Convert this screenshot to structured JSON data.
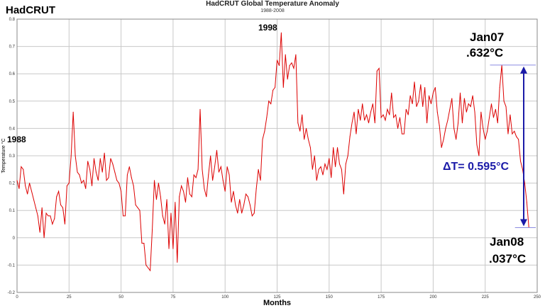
{
  "chart_data": {
    "type": "line",
    "title": "HadCRUT Global Temperature Anomaly",
    "subtitle": "1988-2008",
    "brand": "HadCRUT",
    "xlabel": "Months",
    "ylabel": "Temperature °C",
    "xlim": [
      0,
      250
    ],
    "ylim": [
      -0.2,
      0.8
    ],
    "x_ticks": [
      0,
      25,
      50,
      75,
      100,
      125,
      150,
      175,
      200,
      225,
      250
    ],
    "y_ticks": [
      -0.2,
      -0.1,
      0,
      0.1,
      0.2,
      0.3,
      0.4,
      0.5,
      0.6,
      0.7,
      0.8
    ],
    "grid": true,
    "series": [
      {
        "color": "#dd0000",
        "values": [
          0.21,
          0.18,
          0.26,
          0.25,
          0.19,
          0.16,
          0.2,
          0.17,
          0.14,
          0.11,
          0.08,
          0.02,
          0.11,
          0.0,
          0.09,
          0.08,
          0.08,
          0.05,
          0.07,
          0.15,
          0.17,
          0.12,
          0.11,
          0.05,
          0.19,
          0.2,
          0.3,
          0.46,
          0.3,
          0.24,
          0.23,
          0.2,
          0.21,
          0.18,
          0.28,
          0.25,
          0.19,
          0.29,
          0.24,
          0.21,
          0.29,
          0.24,
          0.31,
          0.21,
          0.22,
          0.29,
          0.27,
          0.24,
          0.21,
          0.2,
          0.17,
          0.08,
          0.08,
          0.23,
          0.26,
          0.22,
          0.19,
          0.12,
          0.11,
          0.1,
          -0.02,
          -0.02,
          -0.1,
          -0.11,
          -0.12,
          0.03,
          0.21,
          0.14,
          0.2,
          0.15,
          0.08,
          0.05,
          0.14,
          -0.04,
          0.09,
          -0.04,
          0.13,
          -0.09,
          0.15,
          0.19,
          0.17,
          0.13,
          0.22,
          0.16,
          0.15,
          0.23,
          0.22,
          0.25,
          0.47,
          0.25,
          0.18,
          0.15,
          0.23,
          0.3,
          0.21,
          0.26,
          0.32,
          0.24,
          0.26,
          0.21,
          0.17,
          0.26,
          0.23,
          0.13,
          0.17,
          0.12,
          0.09,
          0.14,
          0.09,
          0.12,
          0.16,
          0.15,
          0.12,
          0.08,
          0.09,
          0.18,
          0.25,
          0.21,
          0.36,
          0.39,
          0.44,
          0.5,
          0.49,
          0.54,
          0.55,
          0.65,
          0.63,
          0.75,
          0.55,
          0.67,
          0.58,
          0.63,
          0.64,
          0.62,
          0.67,
          0.42,
          0.39,
          0.45,
          0.36,
          0.4,
          0.36,
          0.33,
          0.25,
          0.3,
          0.21,
          0.25,
          0.26,
          0.23,
          0.27,
          0.25,
          0.29,
          0.22,
          0.33,
          0.26,
          0.33,
          0.27,
          0.25,
          0.16,
          0.27,
          0.3,
          0.37,
          0.42,
          0.46,
          0.38,
          0.47,
          0.43,
          0.49,
          0.43,
          0.45,
          0.42,
          0.46,
          0.49,
          0.42,
          0.61,
          0.62,
          0.44,
          0.45,
          0.43,
          0.47,
          0.45,
          0.53,
          0.44,
          0.45,
          0.4,
          0.44,
          0.38,
          0.38,
          0.47,
          0.45,
          0.52,
          0.49,
          0.57,
          0.48,
          0.5,
          0.56,
          0.48,
          0.55,
          0.42,
          0.52,
          0.49,
          0.53,
          0.55,
          0.46,
          0.41,
          0.33,
          0.36,
          0.4,
          0.43,
          0.47,
          0.51,
          0.4,
          0.36,
          0.42,
          0.53,
          0.42,
          0.51,
          0.46,
          0.49,
          0.48,
          0.52,
          0.46,
          0.34,
          0.3,
          0.46,
          0.4,
          0.36,
          0.39,
          0.44,
          0.49,
          0.44,
          0.47,
          0.42,
          0.55,
          0.632,
          0.5,
          0.48,
          0.38,
          0.45,
          0.38,
          0.39,
          0.37,
          0.36,
          0.28,
          0.25,
          0.2,
          0.13,
          0.037
        ]
      }
    ],
    "annotations": {
      "year_1988": "1988",
      "year_1998": "1998",
      "jan07_label": "Jan07",
      "jan07_value": ".632°C",
      "jan08_label": "Jan08",
      "jan08_value": ".037°C",
      "delta_label": "ΔT= 0.595°C",
      "jan07_y": 0.632,
      "jan08_y": 0.037,
      "jan07_x": 228,
      "jan08_x": 240
    }
  }
}
